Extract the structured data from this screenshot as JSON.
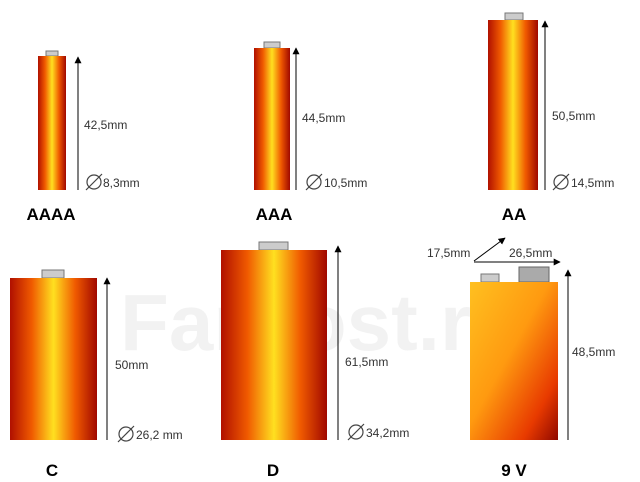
{
  "watermark": "FarPost.ru",
  "batteries": [
    {
      "name": "AAAA",
      "height": "42,5mm",
      "diameter": "8,3mm"
    },
    {
      "name": "AAA",
      "height": "44,5mm",
      "diameter": "10,5mm"
    },
    {
      "name": "AA",
      "height": "50,5mm",
      "diameter": "14,5mm"
    },
    {
      "name": "C",
      "height": "50mm",
      "diameter": "26,2 mm"
    },
    {
      "name": "D",
      "height": "61,5mm",
      "diameter": "34,2mm"
    },
    {
      "name": "9 V",
      "height": "48,5mm",
      "depth": "17,5mm",
      "width": "26,5mm"
    }
  ]
}
